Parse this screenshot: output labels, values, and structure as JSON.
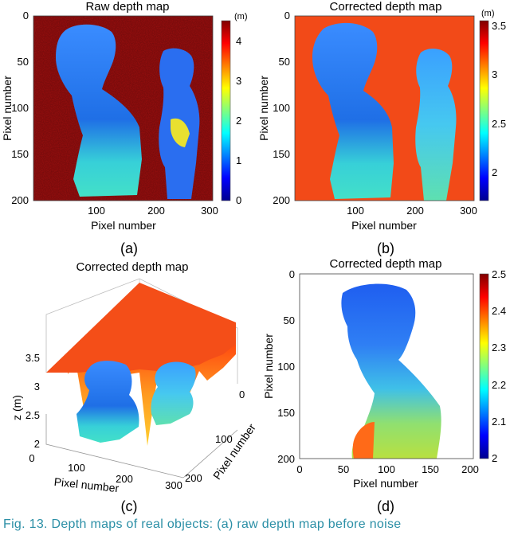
{
  "chart_data": [
    {
      "type": "heatmap",
      "title": "Raw depth map",
      "xlabel": "Pixel number",
      "ylabel": "Pixel number",
      "x_ticks": [
        "100",
        "200",
        "300"
      ],
      "y_ticks": [
        "0",
        "50",
        "100",
        "150",
        "200"
      ],
      "colorbar": {
        "unit": "(m)",
        "ticks": [
          "0",
          "1",
          "2",
          "3",
          "4"
        ],
        "range": [
          0,
          4.5
        ],
        "colormap": "jet"
      },
      "xlim": [
        0,
        300
      ],
      "ylim": [
        200,
        0
      ],
      "sublabel": "(a)"
    },
    {
      "type": "heatmap",
      "title": "Corrected depth map",
      "xlabel": "Pixel number",
      "ylabel": "Pixel number",
      "x_ticks": [
        "100",
        "200",
        "300"
      ],
      "y_ticks": [
        "0",
        "50",
        "100",
        "150",
        "200"
      ],
      "colorbar": {
        "unit": "(m)",
        "ticks": [
          "2",
          "2.5",
          "3",
          "3.5"
        ],
        "range": [
          1.75,
          3.6
        ],
        "colormap": "jet"
      },
      "xlim": [
        0,
        300
      ],
      "ylim": [
        200,
        0
      ],
      "sublabel": "(b)"
    },
    {
      "type": "surface3d",
      "title": "Corrected depth map",
      "xlabel": "Pixel number",
      "ylabel": "Pixel number",
      "zlabel": "z (m)",
      "x_ticks": [
        "0",
        "100",
        "200",
        "300"
      ],
      "y_ticks": [
        "0",
        "100",
        "200"
      ],
      "z_ticks": [
        "2",
        "2.5",
        "3",
        "3.5"
      ],
      "zlim": [
        2,
        3.5
      ],
      "sublabel": "(c)"
    },
    {
      "type": "heatmap",
      "title": "Corrected depth map",
      "xlabel": "Pixel number",
      "ylabel": "Pixel number",
      "x_ticks": [
        "0",
        "50",
        "100",
        "150",
        "200"
      ],
      "y_ticks": [
        "0",
        "50",
        "100",
        "150",
        "200"
      ],
      "colorbar": {
        "unit": "",
        "ticks": [
          "2",
          "2.1",
          "2.2",
          "2.3",
          "2.4",
          "2.5"
        ],
        "range": [
          2,
          2.5
        ],
        "colormap": "jet"
      },
      "xlim": [
        0,
        200
      ],
      "ylim": [
        200,
        0
      ],
      "sublabel": "(d)"
    }
  ],
  "caption": "Fig. 13.  Depth maps of real objects: (a) raw depth map before noise"
}
